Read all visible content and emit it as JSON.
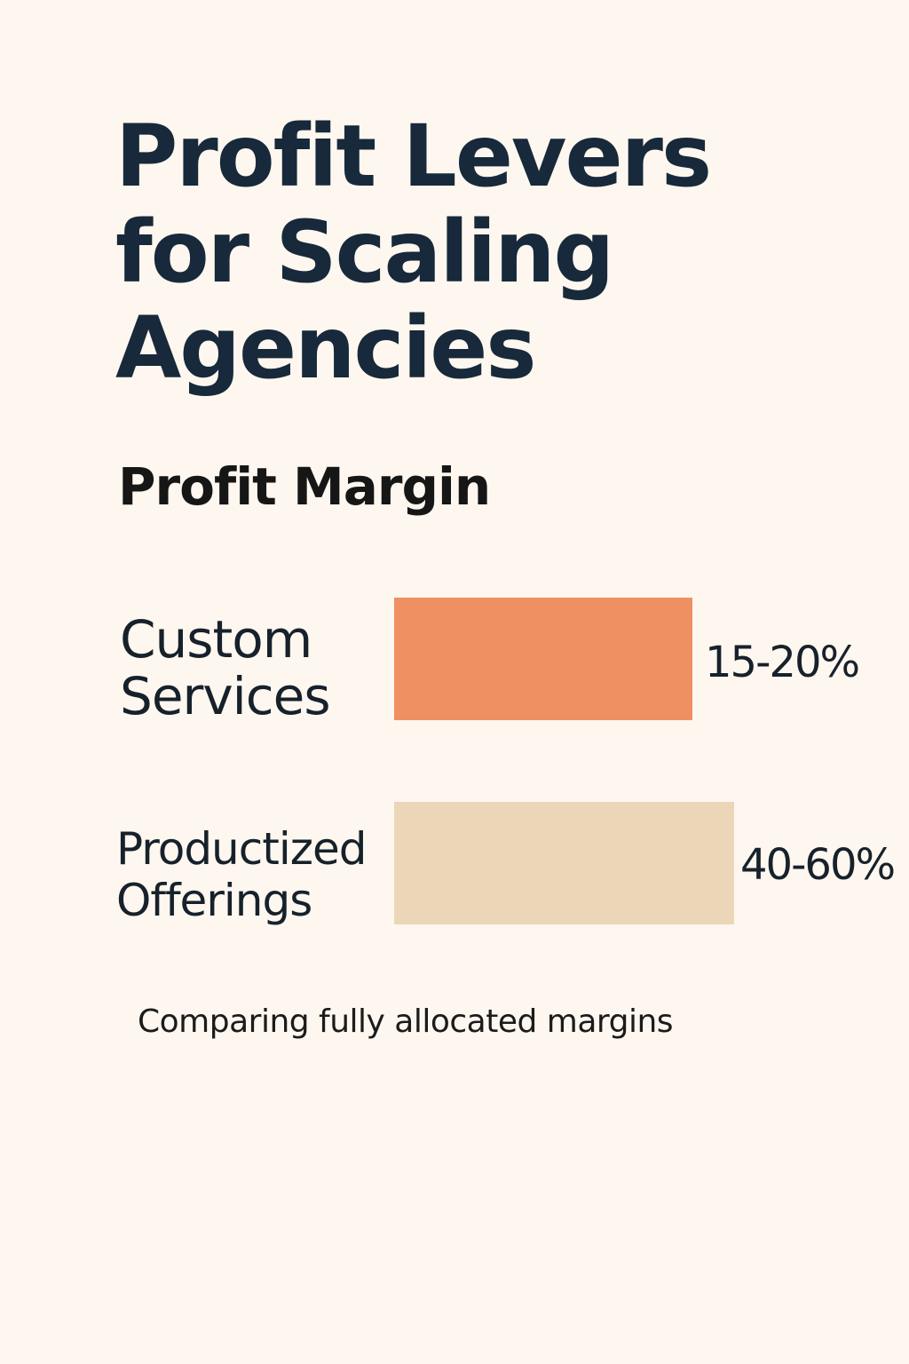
{
  "title_lines": [
    "Profit Levers",
    "for Scaling",
    "Agencies"
  ],
  "chart_data": {
    "type": "bar",
    "orientation": "horizontal",
    "title": "Profit Margin",
    "categories": [
      {
        "lines": [
          "Custom",
          "Services"
        ]
      },
      {
        "lines": [
          "Productized",
          "Offerings"
        ]
      }
    ],
    "ranges": [
      [
        15,
        20
      ],
      [
        40,
        60
      ]
    ],
    "value_labels": [
      "15-20%",
      "40-60%"
    ],
    "colors": [
      "#ef9063",
      "#ecd6b8"
    ],
    "grid": false,
    "legend": "none"
  },
  "note": "Comparing fully allocated margins"
}
